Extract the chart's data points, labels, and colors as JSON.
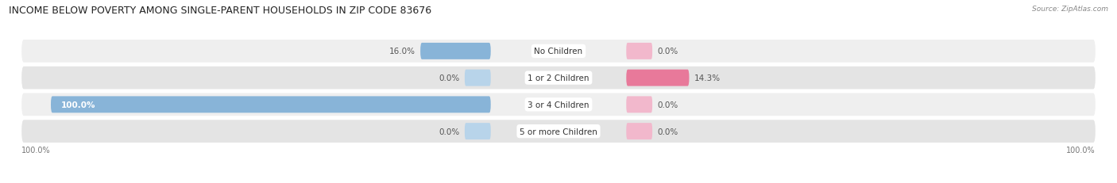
{
  "title": "INCOME BELOW POVERTY AMONG SINGLE-PARENT HOUSEHOLDS IN ZIP CODE 83676",
  "source": "Source: ZipAtlas.com",
  "categories": [
    "No Children",
    "1 or 2 Children",
    "3 or 4 Children",
    "5 or more Children"
  ],
  "single_father": [
    16.0,
    0.0,
    100.0,
    0.0
  ],
  "single_mother": [
    0.0,
    14.3,
    0.0,
    0.0
  ],
  "father_color": "#88b4d8",
  "mother_color": "#e8799a",
  "father_color_light": "#b8d4ea",
  "mother_color_light": "#f2b8cc",
  "row_bg_light": "#efefef",
  "row_bg_dark": "#e4e4e4",
  "label_bg": "#ffffff",
  "max_val": 100.0,
  "title_fontsize": 9,
  "label_fontsize": 7.5,
  "value_fontsize": 7.5,
  "background_color": "#ffffff"
}
